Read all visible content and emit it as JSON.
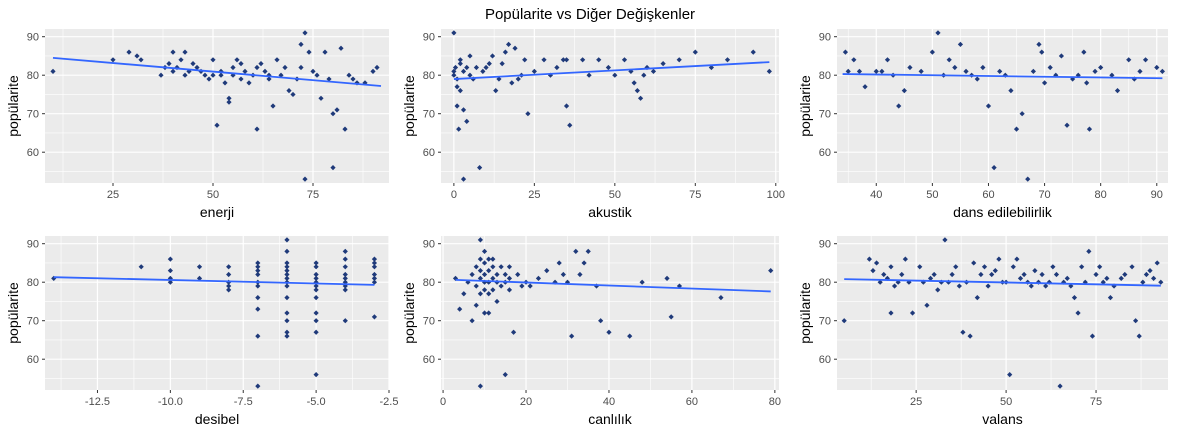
{
  "title": "Popülarite vs Diğer Değişkenler",
  "colors": {
    "panel_bg": "#EBEBEB",
    "grid": "#FFFFFF",
    "point": "#1F3A7A",
    "trend": "#3366FF"
  },
  "chart_data": [
    {
      "type": "scatter",
      "xlabel": "enerji",
      "ylabel": "popülarite",
      "xlim": [
        8,
        94
      ],
      "ylim": [
        52,
        92
      ],
      "xticks": [
        25,
        50,
        75
      ],
      "xtick_labels": [
        "25",
        "50",
        "75"
      ],
      "yticks": [
        60,
        70,
        80,
        90
      ],
      "ytick_labels": [
        "60",
        "70",
        "80",
        "90"
      ],
      "grid": true,
      "trend_line": [
        [
          10,
          84.5
        ],
        [
          92,
          77.2
        ]
      ],
      "x": [
        10,
        25,
        29,
        31,
        32,
        37,
        38,
        39,
        40,
        40,
        41,
        42,
        43,
        43,
        44,
        45,
        46,
        47,
        48,
        49,
        50,
        50,
        51,
        52,
        52,
        53,
        54,
        54,
        55,
        55,
        56,
        57,
        57,
        58,
        59,
        60,
        61,
        61,
        62,
        63,
        64,
        64,
        65,
        66,
        67,
        68,
        69,
        70,
        71,
        72,
        72,
        73,
        73,
        74,
        75,
        76,
        77,
        78,
        79,
        80,
        80,
        81,
        82,
        83,
        84,
        85,
        86,
        88,
        90,
        91
      ],
      "y": [
        81,
        84,
        86,
        85,
        84,
        80,
        82,
        83,
        86,
        81,
        82,
        84,
        80,
        86,
        81,
        83,
        82,
        81,
        80,
        79,
        84,
        80,
        67,
        81,
        80,
        78,
        74,
        73,
        82,
        80,
        84,
        79,
        83,
        81,
        78,
        80,
        66,
        82,
        83,
        81,
        80,
        79,
        72,
        84,
        80,
        82,
        76,
        75,
        79,
        88,
        82,
        91,
        53,
        86,
        81,
        80,
        74,
        86,
        79,
        70,
        56,
        71,
        87,
        66,
        80,
        79,
        78,
        78,
        81,
        82
      ]
    },
    {
      "type": "scatter",
      "xlabel": "akustik",
      "ylabel": "popülarite",
      "xlim": [
        -4,
        101
      ],
      "ylim": [
        52,
        92
      ],
      "xticks": [
        0,
        25,
        50,
        75,
        100
      ],
      "xtick_labels": [
        "0",
        "25",
        "50",
        "75",
        "100"
      ],
      "yticks": [
        60,
        70,
        80,
        90
      ],
      "ytick_labels": [
        "60",
        "70",
        "80",
        "90"
      ],
      "grid": true,
      "trend_line": [
        [
          0,
          79.0
        ],
        [
          98,
          83.4
        ]
      ],
      "x": [
        0,
        0,
        0,
        0.5,
        1,
        1,
        1,
        1.5,
        2,
        2,
        2,
        3,
        3,
        3,
        4,
        4,
        5,
        5,
        6,
        7,
        8,
        9,
        10,
        11,
        12,
        13,
        14,
        15,
        16,
        17,
        18,
        19,
        20,
        21,
        22,
        23,
        25,
        28,
        30,
        32,
        34,
        35,
        35,
        36,
        40,
        42,
        45,
        48,
        50,
        53,
        55,
        56,
        57,
        58,
        59,
        60,
        62,
        65,
        70,
        75,
        80,
        85,
        93,
        98
      ],
      "y": [
        91,
        81,
        80,
        82,
        79,
        77,
        72,
        66,
        84,
        83,
        76,
        81,
        71,
        53,
        82,
        68,
        85,
        80,
        79,
        82,
        56,
        81,
        82,
        83,
        85,
        76,
        79,
        83,
        86,
        88,
        78,
        87,
        79,
        80,
        84,
        70,
        81,
        84,
        80,
        82,
        84,
        84,
        72,
        67,
        84,
        80,
        84,
        82,
        80,
        84,
        81,
        78,
        76,
        74,
        80,
        82,
        81,
        83,
        84,
        86,
        82,
        84,
        86,
        81
      ]
    },
    {
      "type": "scatter",
      "xlabel": "dans edilebilirlik",
      "ylabel": "popülarite",
      "xlim": [
        33,
        92
      ],
      "ylim": [
        52,
        92
      ],
      "xticks": [
        40,
        50,
        60,
        70,
        80,
        90
      ],
      "xtick_labels": [
        "40",
        "50",
        "60",
        "70",
        "80",
        "90"
      ],
      "yticks": [
        60,
        70,
        80,
        90
      ],
      "ytick_labels": [
        "60",
        "70",
        "80",
        "90"
      ],
      "grid": true,
      "trend_line": [
        [
          34,
          80.3
        ],
        [
          91,
          79.2
        ]
      ],
      "x": [
        34.5,
        35,
        36,
        37,
        38,
        40,
        41,
        42,
        43,
        44,
        45,
        46,
        48,
        50,
        51,
        52,
        53,
        54,
        55,
        56,
        57,
        58,
        59,
        60,
        61,
        62,
        63,
        64,
        65,
        66,
        67,
        68,
        69,
        69.5,
        70,
        71,
        72,
        73,
        74,
        75,
        76,
        77,
        77.5,
        78,
        79,
        80,
        82,
        83,
        85,
        86,
        87,
        88,
        90,
        91
      ],
      "y": [
        86,
        81,
        84,
        81,
        77,
        81,
        81,
        84,
        80,
        72,
        76,
        82,
        81,
        86,
        91,
        80,
        84,
        82,
        88,
        81,
        80,
        79,
        82,
        72,
        56,
        81,
        80,
        76,
        66,
        70,
        53,
        81,
        88,
        86,
        78,
        82,
        80,
        85,
        67,
        79,
        80,
        86,
        78,
        66,
        81,
        82,
        80,
        76,
        84,
        79,
        81,
        84,
        82,
        81
      ]
    },
    {
      "type": "scatter",
      "xlabel": "desibel",
      "ylabel": "popülarite",
      "xlim": [
        -14.3,
        -2.5
      ],
      "ylim": [
        52,
        92
      ],
      "xticks": [
        -12.5,
        -10,
        -7.5,
        -5,
        -2.5
      ],
      "xtick_labels": [
        "-12.5",
        "-10.0",
        "-7.5",
        "-5.0",
        "-2.5"
      ],
      "yticks": [
        60,
        70,
        80,
        90
      ],
      "ytick_labels": [
        "60",
        "70",
        "80",
        "90"
      ],
      "grid": true,
      "trend_line": [
        [
          -14,
          81.3
        ],
        [
          -3,
          79.3
        ]
      ],
      "x": [
        -14,
        -11,
        -10,
        -10,
        -10,
        -10,
        -9,
        -9,
        -8,
        -8,
        -8,
        -8,
        -8,
        -7,
        -7,
        -7,
        -7,
        -7,
        -7,
        -7,
        -7,
        -7,
        -7,
        -6,
        -6,
        -6,
        -6,
        -6,
        -6,
        -6,
        -6,
        -6,
        -6,
        -6,
        -6,
        -6,
        -6,
        -5,
        -5,
        -5,
        -5,
        -5,
        -5,
        -5,
        -5,
        -5,
        -5,
        -5,
        -5,
        -4,
        -4,
        -4,
        -4,
        -4,
        -4,
        -4,
        -4,
        -4,
        -3,
        -3,
        -3,
        -3,
        -3,
        -3,
        -3
      ],
      "y": [
        81,
        84,
        86,
        83,
        81,
        80,
        84,
        81,
        84,
        82,
        80,
        79,
        78,
        85,
        84,
        83,
        82,
        80,
        79,
        76,
        73,
        66,
        53,
        91,
        88,
        85,
        84,
        83,
        82,
        81,
        80,
        79,
        76,
        72,
        67,
        66,
        70,
        85,
        84,
        82,
        81,
        80,
        79,
        78,
        76,
        72,
        70,
        67,
        56,
        88,
        86,
        84,
        82,
        81,
        80,
        79,
        78,
        70,
        86,
        85,
        84,
        82,
        81,
        80,
        71
      ]
    },
    {
      "type": "scatter",
      "xlabel": "canlılık",
      "ylabel": "popülarite",
      "xlim": [
        -0.5,
        81
      ],
      "ylim": [
        52,
        92
      ],
      "xticks": [
        0,
        20,
        40,
        60,
        80
      ],
      "xtick_labels": [
        "0",
        "20",
        "40",
        "60",
        "80"
      ],
      "yticks": [
        60,
        70,
        80,
        90
      ],
      "ytick_labels": [
        "60",
        "70",
        "80",
        "90"
      ],
      "grid": true,
      "trend_line": [
        [
          3,
          80.6
        ],
        [
          79,
          77.6
        ]
      ],
      "x": [
        3,
        4,
        5,
        6,
        7,
        7,
        8,
        8,
        8,
        9,
        9,
        9,
        9,
        9,
        9,
        10,
        10,
        10,
        10,
        10,
        10,
        11,
        11,
        11,
        11,
        11,
        12,
        12,
        12,
        12,
        13,
        13,
        13,
        14,
        14,
        15,
        15,
        15,
        16,
        16,
        16,
        17,
        18,
        19,
        20,
        21,
        23,
        25,
        27,
        28,
        29,
        30,
        31,
        32,
        33,
        34,
        35,
        37,
        38,
        40,
        45,
        48,
        54,
        55,
        57,
        67,
        79
      ],
      "y": [
        81,
        73,
        77,
        80,
        70,
        82,
        84,
        79,
        74,
        91,
        86,
        83,
        81,
        77,
        53,
        88,
        85,
        82,
        80,
        78,
        72,
        86,
        83,
        80,
        77,
        72,
        86,
        84,
        81,
        78,
        82,
        80,
        75,
        84,
        79,
        82,
        80,
        56,
        84,
        81,
        78,
        67,
        82,
        79,
        80,
        79,
        81,
        83,
        80,
        85,
        82,
        80,
        66,
        88,
        82,
        85,
        88,
        79,
        70,
        67,
        66,
        80,
        81,
        71,
        79,
        76,
        83
      ]
    },
    {
      "type": "scatter",
      "xlabel": "valans",
      "ylabel": "popülarite",
      "xlim": [
        3,
        95
      ],
      "ylim": [
        52,
        92
      ],
      "xticks": [
        25,
        50,
        75
      ],
      "xtick_labels": [
        "25",
        "50",
        "75"
      ],
      "yticks": [
        60,
        70,
        80,
        90
      ],
      "ytick_labels": [
        "60",
        "70",
        "80",
        "90"
      ],
      "grid": true,
      "trend_line": [
        [
          5,
          80.8
        ],
        [
          93,
          79.1
        ]
      ],
      "x": [
        5,
        12,
        13,
        14,
        15,
        16,
        17,
        18,
        18,
        19,
        20,
        21,
        22,
        23,
        24,
        26,
        27,
        28,
        29,
        30,
        31,
        32,
        33,
        34,
        35,
        36,
        37,
        38,
        39,
        40,
        41,
        42,
        43,
        44,
        45,
        46,
        47,
        48,
        49,
        50,
        51,
        52,
        53,
        54,
        55,
        56,
        57,
        58,
        59,
        60,
        61,
        62,
        63,
        64,
        65,
        66,
        67,
        68,
        69,
        70,
        71,
        72,
        73,
        74,
        75,
        76,
        77,
        78,
        79,
        80,
        82,
        83,
        85,
        86,
        87,
        88,
        89,
        90,
        91,
        92,
        93
      ],
      "y": [
        70,
        86,
        83,
        85,
        80,
        82,
        81,
        72,
        84,
        79,
        80,
        82,
        86,
        80,
        72,
        84,
        80,
        74,
        81,
        82,
        78,
        80,
        91,
        80,
        82,
        84,
        79,
        67,
        80,
        66,
        85,
        76,
        82,
        84,
        79,
        82,
        83,
        86,
        80,
        80,
        56,
        84,
        86,
        81,
        82,
        80,
        79,
        83,
        80,
        82,
        79,
        80,
        84,
        82,
        53,
        80,
        81,
        79,
        76,
        72,
        84,
        80,
        88,
        66,
        82,
        84,
        80,
        81,
        76,
        79,
        81,
        82,
        84,
        70,
        66,
        80,
        82,
        83,
        81,
        85,
        80
      ]
    }
  ]
}
